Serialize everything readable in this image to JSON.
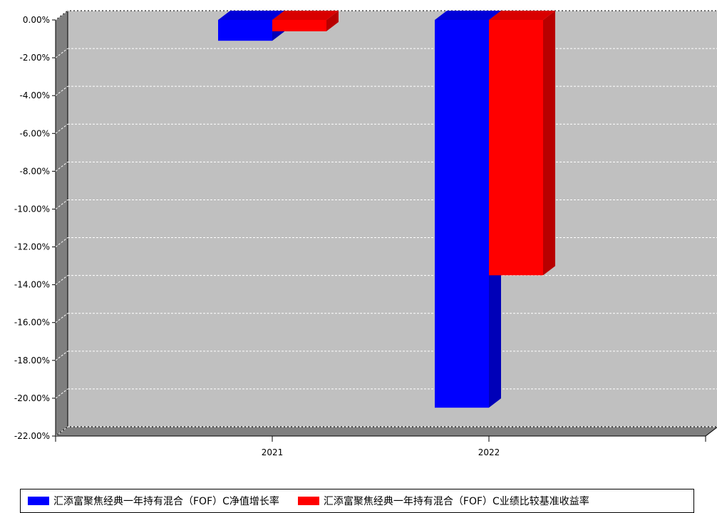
{
  "chart_data": {
    "type": "bar",
    "categories": [
      "2021",
      "2022"
    ],
    "series": [
      {
        "name": "汇添富聚焦经典一年持有混合（FOF）C净值增长率",
        "values": [
          -1.1,
          -20.5
        ],
        "color": "#0000ff"
      },
      {
        "name": "汇添富聚焦经典一年持有混合（FOF）C业绩比较基准收益率",
        "values": [
          -0.6,
          -13.5
        ],
        "color": "#ff0000"
      }
    ],
    "ylim": [
      -22,
      0
    ],
    "yticks": [
      "0.00%",
      "-2.00%",
      "-4.00%",
      "-6.00%",
      "-8.00%",
      "-10.00%",
      "-12.00%",
      "-14.00%",
      "-16.00%",
      "-18.00%",
      "-20.00%",
      "-22.00%"
    ],
    "grid": true,
    "legend_position": "bottom",
    "plot_background": "#c0c0c0"
  }
}
